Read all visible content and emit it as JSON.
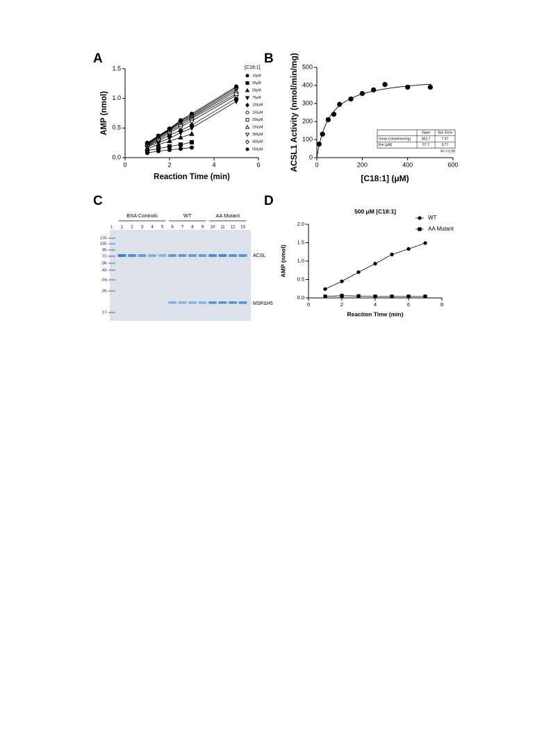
{
  "chart_data": [
    {
      "type": "line",
      "panel": "A",
      "xlabel": "Reaction Time (min)",
      "ylabel": "AMP (nmol)",
      "legend_title": "[C18:1]",
      "x": [
        1,
        1.5,
        2,
        2.5,
        3,
        5
      ],
      "xlim": [
        0,
        6
      ],
      "xticks": [
        0,
        2,
        4,
        6
      ],
      "ylim": [
        0,
        1.5
      ],
      "yticks": [
        {
          "value": 0,
          "label": "0.0"
        },
        0.5,
        {
          "value": 1,
          "label": "1.0"
        },
        1.5
      ],
      "series": [
        {
          "name": "10μM",
          "color": "#000000",
          "marker": "circle",
          "values": [
            0.08,
            0.11,
            0.13,
            0.15,
            0.17,
            null
          ]
        },
        {
          "name": "25μM",
          "color": "#000000",
          "marker": "square",
          "values": [
            0.12,
            0.15,
            0.19,
            0.22,
            0.26,
            null
          ]
        },
        {
          "name": "50μM",
          "color": "#000000",
          "marker": "triangle",
          "values": [
            0.15,
            0.22,
            0.28,
            0.34,
            0.4,
            null
          ]
        },
        {
          "name": "75μM",
          "color": "#000000",
          "marker": "triangle-down",
          "values": [
            0.18,
            0.25,
            0.33,
            0.42,
            0.5,
            0.95
          ]
        },
        {
          "name": "100μM",
          "color": "#000000",
          "marker": "diamond",
          "values": [
            0.19,
            0.28,
            0.38,
            0.46,
            0.55,
            1.0
          ]
        },
        {
          "name": "150μM",
          "color": "#000000",
          "marker": "circle-open",
          "values": [
            0.2,
            0.3,
            0.42,
            0.52,
            0.62,
            1.05
          ]
        },
        {
          "name": "200μM",
          "color": "#000000",
          "marker": "square-open",
          "values": [
            0.21,
            0.32,
            0.44,
            0.55,
            0.66,
            1.08
          ]
        },
        {
          "name": "250μM",
          "color": "#000000",
          "marker": "triangle-open",
          "values": [
            0.22,
            0.34,
            0.46,
            0.58,
            0.68,
            1.12
          ]
        },
        {
          "name": "300μM",
          "color": "#000000",
          "marker": "triangle-down-open",
          "values": [
            0.23,
            0.35,
            0.47,
            0.6,
            0.7,
            1.15
          ]
        },
        {
          "name": "400μM",
          "color": "#000000",
          "marker": "diamond-open",
          "values": [
            0.24,
            0.36,
            0.48,
            0.62,
            0.72,
            1.18
          ]
        },
        {
          "name": "500μM",
          "color": "#000000",
          "marker": "circle",
          "values": [
            0.25,
            0.37,
            0.49,
            0.63,
            0.74,
            1.2
          ]
        }
      ]
    },
    {
      "type": "scatter",
      "panel": "B",
      "xlabel": "[C18:1] (μM)",
      "ylabel": "ACSL1 Activity (nmol/min/mg)",
      "x": [
        10,
        25,
        50,
        75,
        100,
        150,
        200,
        250,
        300,
        400,
        500
      ],
      "series": [
        {
          "color": "#000000",
          "marker": "circle",
          "values": [
            75,
            130,
            210,
            240,
            295,
            325,
            355,
            375,
            405,
            390,
            390
          ]
        }
      ],
      "xlim": [
        0,
        600
      ],
      "xticks": [
        0,
        200,
        400,
        600
      ],
      "ylim": [
        0,
        500
      ],
      "yticks": [
        0,
        100,
        200,
        300,
        400,
        500
      ],
      "table": {
        "columns": [
          "Value",
          "Std. Error"
        ],
        "rows": [
          {
            "label": "Vmax (nmol/min/mg)",
            "value": 453.7,
            "error": 7.97
          },
          {
            "label": "Km (μM)",
            "value": 57.7,
            "error": 3.77
          }
        ],
        "note": "R² = 0.99"
      }
    },
    {
      "type": "line",
      "panel": "D",
      "title": "500 μM [C18:1]",
      "xlabel": "Reaction Time (min)",
      "ylabel": "AMP (nmol)",
      "x": [
        1,
        2,
        3,
        4,
        5,
        6,
        7
      ],
      "xlim": [
        0,
        8
      ],
      "xticks": [
        0,
        2,
        4,
        6,
        8
      ],
      "ylim": [
        0,
        2
      ],
      "yticks": [
        {
          "value": 0,
          "label": "0.0"
        },
        0.5,
        {
          "value": 1,
          "label": "1.0"
        },
        1.5,
        {
          "value": 2,
          "label": "2.0"
        }
      ],
      "legend": "top-right",
      "series": [
        {
          "name": "WT",
          "color": "#000000",
          "marker": "circle",
          "values": [
            0.24,
            0.45,
            0.7,
            0.93,
            1.18,
            1.33,
            1.49
          ]
        },
        {
          "name": "AA Mutant",
          "color": "#000000",
          "marker": "square",
          "values": [
            0.04,
            0.06,
            0.05,
            0.04,
            0.04,
            0.04,
            0.04
          ]
        }
      ]
    }
  ],
  "gel": {
    "panel": "C",
    "groups": [
      "BSA Controls",
      "WT",
      "AA Mutant"
    ],
    "lanes": [
      "L",
      "1",
      "2",
      "3",
      "4",
      "5",
      "6",
      "7",
      "8",
      "9",
      "10",
      "11",
      "12",
      "13"
    ],
    "markers": [
      "170-",
      "130-",
      "95-",
      "72-",
      "56-",
      "43-",
      "34-",
      "26-",
      "17-"
    ],
    "bands": [
      "ACSL",
      "MSPΔH5"
    ]
  }
}
